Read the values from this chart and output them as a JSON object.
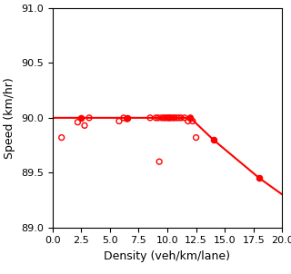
{
  "title": "",
  "xlabel": "Density (veh/km/lane)",
  "ylabel": "Speed (km/hr)",
  "xlim": [
    0.0,
    20.0
  ],
  "ylim": [
    89.0,
    91.0
  ],
  "xticks": [
    0.0,
    2.5,
    5.0,
    7.5,
    10.0,
    12.5,
    15.0,
    17.5,
    20.0
  ],
  "yticks": [
    89.0,
    89.5,
    90.0,
    90.5,
    91.0
  ],
  "line_x": [
    0.0,
    2.5,
    6.5,
    12.0,
    14.0,
    18.0,
    20.0
  ],
  "line_y": [
    90.0,
    90.0,
    90.0,
    90.0,
    89.8,
    89.45,
    89.3
  ],
  "line_marker_x": [
    2.5,
    6.5,
    12.0,
    14.0,
    18.0
  ],
  "line_marker_y": [
    90.0,
    90.0,
    90.0,
    89.8,
    89.45
  ],
  "scatter_x": [
    0.8,
    2.2,
    2.8,
    3.2,
    5.8,
    6.2,
    6.5,
    8.5,
    9.0,
    9.2,
    9.5,
    9.7,
    9.8,
    10.0,
    10.1,
    10.2,
    10.3,
    10.5,
    10.6,
    10.8,
    11.0,
    11.2,
    11.5,
    11.8,
    12.0,
    12.2,
    9.3,
    12.5
  ],
  "scatter_y": [
    89.82,
    89.96,
    89.93,
    90.0,
    89.97,
    90.0,
    89.99,
    90.0,
    90.0,
    90.0,
    90.0,
    90.0,
    90.0,
    90.0,
    90.0,
    90.0,
    90.0,
    90.0,
    90.0,
    90.0,
    90.0,
    90.0,
    90.0,
    89.97,
    90.0,
    89.97,
    89.6,
    89.82
  ],
  "color": "#ff0000",
  "figsize": [
    3.2,
    3.02
  ],
  "dpi": 100
}
